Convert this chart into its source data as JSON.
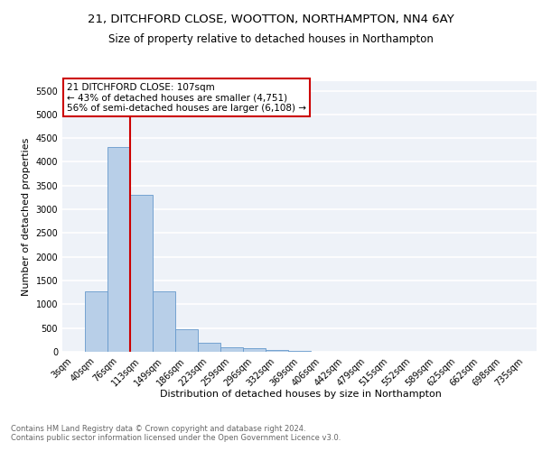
{
  "title1": "21, DITCHFORD CLOSE, WOOTTON, NORTHAMPTON, NN4 6AY",
  "title2": "Size of property relative to detached houses in Northampton",
  "xlabel": "Distribution of detached houses by size in Northampton",
  "ylabel": "Number of detached properties",
  "bar_labels": [
    "3sqm",
    "40sqm",
    "76sqm",
    "113sqm",
    "149sqm",
    "186sqm",
    "223sqm",
    "259sqm",
    "296sqm",
    "332sqm",
    "369sqm",
    "406sqm",
    "442sqm",
    "479sqm",
    "515sqm",
    "552sqm",
    "589sqm",
    "625sqm",
    "662sqm",
    "698sqm",
    "735sqm"
  ],
  "bar_values": [
    0,
    1270,
    4310,
    3300,
    1270,
    480,
    195,
    95,
    70,
    40,
    20,
    0,
    0,
    0,
    0,
    0,
    0,
    0,
    0,
    0,
    0
  ],
  "bar_color": "#b8cfe8",
  "bar_edge_color": "#6699cc",
  "vline_color": "#cc0000",
  "annotation_text": "21 DITCHFORD CLOSE: 107sqm\n← 43% of detached houses are smaller (4,751)\n56% of semi-detached houses are larger (6,108) →",
  "annotation_box_color": "#ffffff",
  "annotation_box_edge": "#cc0000",
  "ylim": [
    0,
    5700
  ],
  "yticks": [
    0,
    500,
    1000,
    1500,
    2000,
    2500,
    3000,
    3500,
    4000,
    4500,
    5000,
    5500
  ],
  "footnote": "Contains HM Land Registry data © Crown copyright and database right 2024.\nContains public sector information licensed under the Open Government Licence v3.0.",
  "background_color": "#eef2f8",
  "grid_color": "#ffffff",
  "title1_fontsize": 9.5,
  "title2_fontsize": 8.5,
  "axis_label_fontsize": 8,
  "tick_fontsize": 7,
  "annotation_fontsize": 7.5,
  "footnote_fontsize": 6.0,
  "footnote_color": "#666666"
}
